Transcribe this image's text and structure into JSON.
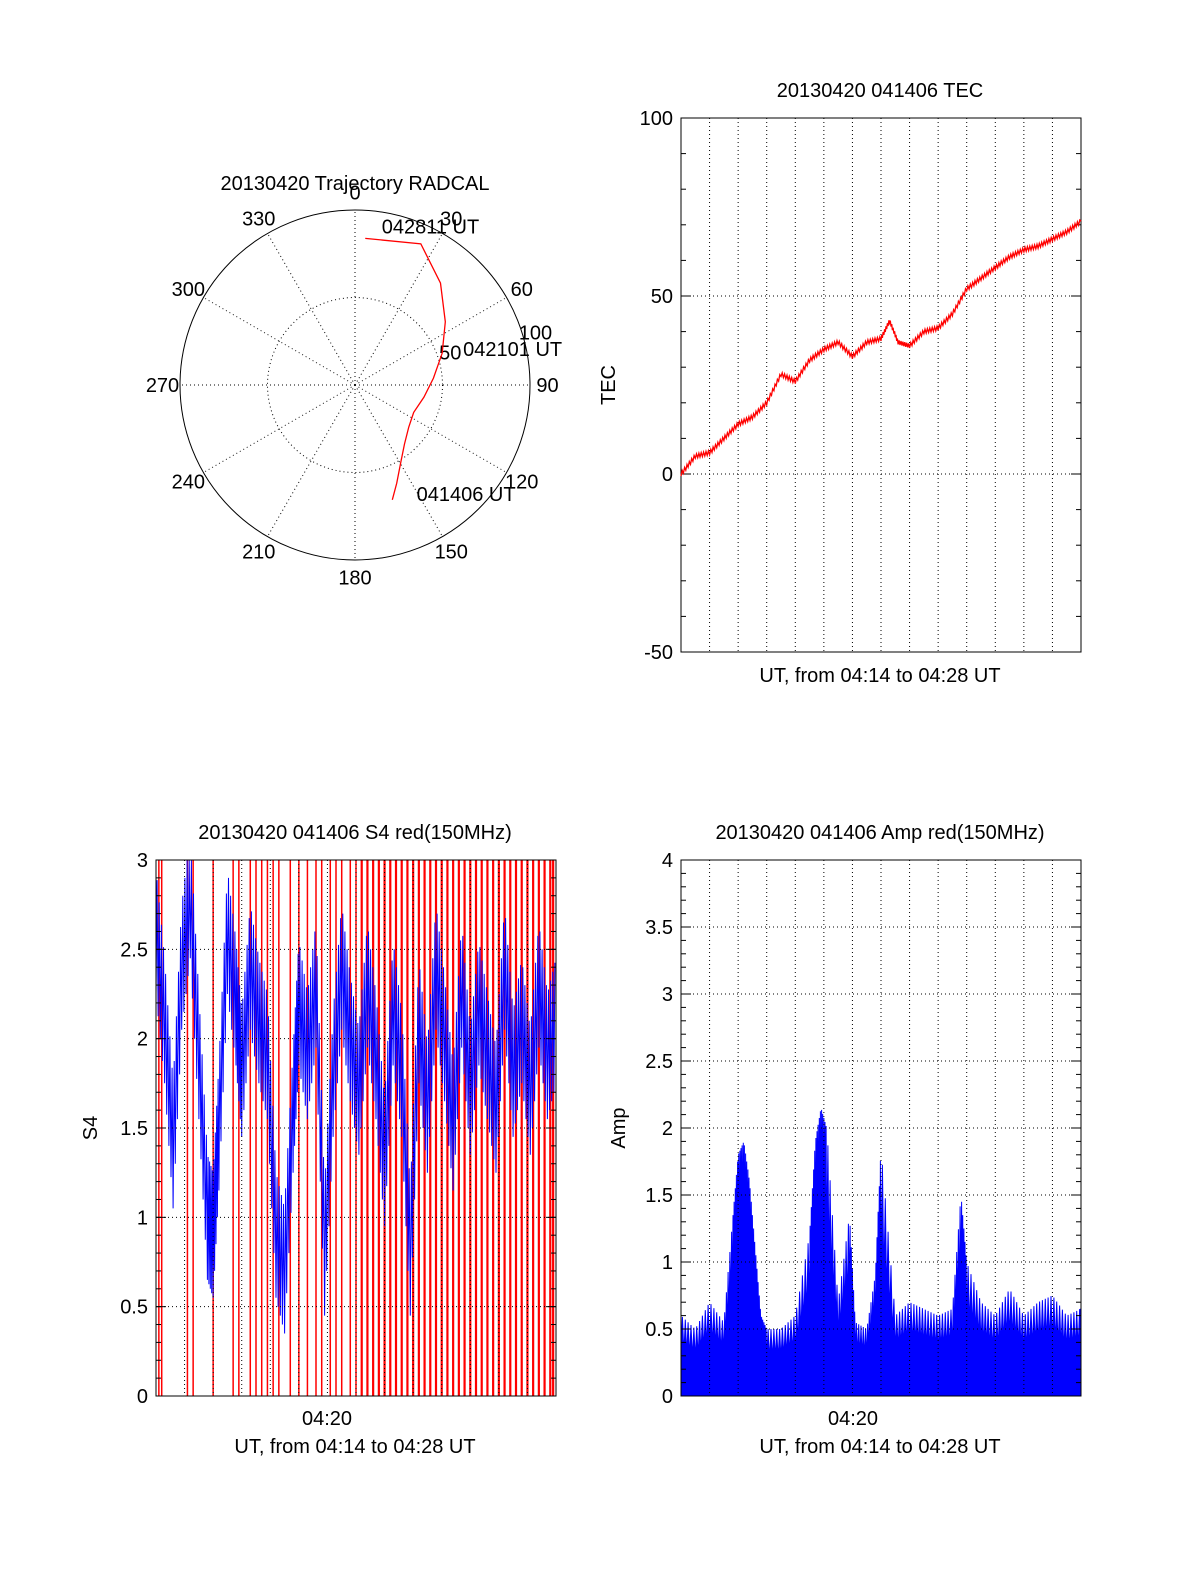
{
  "chart_data": [
    {
      "type": "polar",
      "title": "20130420 Trajectory RADCAL",
      "angle_labels": [
        "0",
        "30",
        "60",
        "90",
        "120",
        "150",
        "180",
        "210",
        "240",
        "270",
        "300",
        "330"
      ],
      "radius_labels": [
        "50",
        "100"
      ],
      "rlim": [
        0,
        100
      ],
      "grid": true,
      "series": [
        {
          "color": "#ff0000",
          "points": [
            {
              "az": 162,
              "r": 69
            },
            {
              "az": 157,
              "r": 61
            },
            {
              "az": 150,
              "r": 52
            },
            {
              "az": 140,
              "r": 44
            },
            {
              "az": 128,
              "r": 39
            },
            {
              "az": 115,
              "r": 37
            },
            {
              "az": 100,
              "r": 40
            },
            {
              "az": 85,
              "r": 45
            },
            {
              "az": 70,
              "r": 53
            },
            {
              "az": 55,
              "r": 63
            },
            {
              "az": 40,
              "r": 76
            },
            {
              "az": 25,
              "r": 89
            },
            {
              "az": 4,
              "r": 84
            }
          ]
        }
      ],
      "annotations": [
        {
          "text": "041406 UT",
          "az": 152,
          "r": 75
        },
        {
          "text": "042101 UT",
          "az": 75,
          "r": 64
        },
        {
          "text": "042811 UT",
          "az": 10,
          "r": 88
        }
      ]
    },
    {
      "type": "line",
      "title": "20130420 041406 TEC",
      "xlabel": "UT, from 04:14 to 04:28 UT",
      "ylabel": "TEC",
      "xlim": [
        0,
        14
      ],
      "ylim": [
        -50,
        100
      ],
      "yticks": [
        "-50",
        "0",
        "50",
        "100"
      ],
      "grid": true,
      "series": [
        {
          "color": "#ff0000",
          "x": [
            0,
            0.5,
            1.0,
            1.5,
            2.0,
            2.5,
            3.0,
            3.5,
            4.0,
            4.5,
            5.0,
            5.5,
            6.0,
            6.5,
            7.0,
            7.3,
            7.6,
            8.0,
            8.5,
            9.0,
            9.5,
            10.0,
            10.5,
            11.0,
            11.5,
            12.0,
            12.5,
            13.0,
            13.5,
            14.0
          ],
          "y": [
            0,
            5,
            6,
            10,
            14,
            16,
            20,
            28,
            26,
            32,
            35,
            37,
            33,
            37,
            38,
            43,
            37,
            36,
            40,
            41,
            45,
            52,
            55,
            58,
            61,
            63,
            64,
            66,
            68,
            71
          ]
        }
      ]
    },
    {
      "type": "line",
      "title": "20130420 041406 S4 red(150MHz)",
      "xlabel": "UT, from 04:14 to 04:28 UT",
      "ylabel": "S4",
      "xtick_labels": [
        "04:20"
      ],
      "xlim": [
        0,
        14
      ],
      "ylim": [
        0,
        3
      ],
      "yticks": [
        "0",
        "0.5",
        "1",
        "1.5",
        "2",
        "2.5",
        "3"
      ],
      "grid": true,
      "series": [
        {
          "color": "#ff0000",
          "description_values": "dense vertical spikes from 0 to 3",
          "x": [
            0.1,
            0.2,
            1.1,
            1.3,
            2.0,
            2.7,
            2.9,
            3.3,
            3.5,
            3.7,
            3.9,
            4.1,
            4.3,
            4.7,
            5.0,
            5.3,
            5.6,
            5.8,
            6.1,
            6.3,
            6.5,
            6.8,
            7.0,
            7.2,
            7.4,
            7.6,
            7.8,
            8.0,
            8.2,
            8.4,
            8.6,
            8.8,
            9.0,
            9.2,
            9.4,
            9.6,
            9.8,
            10.0,
            10.2,
            10.4,
            10.6,
            10.8,
            11.0,
            11.2,
            11.4,
            11.6,
            11.8,
            12.0,
            12.2,
            12.4,
            12.6,
            12.8,
            13.0,
            13.2,
            13.4,
            13.6,
            13.8,
            13.9
          ],
          "y": [
            3,
            3,
            3,
            3,
            3,
            3,
            3,
            3,
            3,
            3,
            3,
            3,
            3,
            3,
            3,
            3,
            3,
            3,
            3,
            3,
            3,
            3,
            3,
            3,
            3,
            3,
            3,
            3,
            3,
            3,
            3,
            3,
            3,
            3,
            3,
            3,
            3,
            3,
            3,
            3,
            3,
            3,
            3,
            3,
            3,
            3,
            3,
            3,
            3,
            3,
            3,
            3,
            3,
            3,
            3,
            3,
            3,
            3
          ]
        },
        {
          "color": "#0000ff",
          "x": [
            0,
            0.3,
            0.6,
            0.9,
            1.2,
            1.5,
            1.8,
            2.0,
            2.2,
            2.5,
            2.8,
            3.0,
            3.3,
            3.6,
            3.9,
            4.2,
            4.5,
            4.8,
            5.0,
            5.3,
            5.6,
            5.9,
            6.2,
            6.5,
            6.8,
            7.1,
            7.4,
            7.7,
            8.0,
            8.3,
            8.6,
            8.9,
            9.2,
            9.5,
            9.8,
            10.1,
            10.4,
            10.7,
            11.0,
            11.3,
            11.6,
            11.9,
            12.2,
            12.5,
            12.8,
            13.1,
            13.4,
            13.7,
            14.0
          ],
          "y": [
            2.6,
            2.1,
            1.4,
            2.4,
            2.8,
            1.9,
            1.0,
            0.9,
            1.5,
            2.6,
            2.2,
            1.8,
            2.4,
            2.1,
            1.9,
            0.9,
            0.7,
            1.6,
            2.2,
            1.9,
            2.3,
            0.8,
            1.8,
            2.4,
            2.0,
            1.7,
            2.3,
            1.9,
            1.3,
            2.2,
            1.8,
            0.8,
            2.1,
            1.6,
            2.4,
            2.0,
            1.5,
            2.3,
            1.7,
            2.2,
            1.9,
            1.6,
            2.4,
            1.8,
            2.1,
            1.7,
            2.3,
            1.9,
            2.1
          ]
        }
      ]
    },
    {
      "type": "bar",
      "title": "20130420 041406 Amp red(150MHz)",
      "xlabel": "UT, from 04:14 to 04:28 UT",
      "ylabel": "Amp",
      "xtick_labels": [
        "04:20"
      ],
      "xlim": [
        0,
        14
      ],
      "ylim": [
        0,
        4
      ],
      "yticks": [
        "0",
        "0.5",
        "1",
        "1.5",
        "2",
        "2.5",
        "3",
        "3.5",
        "4"
      ],
      "grid": true,
      "series": [
        {
          "color": "#0000ff",
          "x": [
            0.0,
            0.5,
            1.0,
            1.5,
            1.8,
            2.0,
            2.2,
            2.4,
            2.6,
            2.8,
            3.0,
            3.5,
            4.0,
            4.5,
            4.7,
            4.9,
            5.1,
            5.5,
            5.9,
            6.1,
            6.5,
            6.8,
            7.0,
            7.5,
            8.0,
            8.5,
            9.0,
            9.5,
            9.8,
            10.0,
            10.5,
            11.0,
            11.5,
            12.0,
            12.5,
            13.0,
            13.5,
            14.0
          ],
          "y": [
            0.6,
            0.5,
            0.7,
            0.55,
            1.3,
            1.8,
            1.9,
            1.6,
            1.1,
            0.6,
            0.5,
            0.5,
            0.6,
            1.2,
            1.9,
            2.15,
            2.0,
            0.7,
            1.35,
            0.55,
            0.5,
            0.9,
            1.85,
            0.6,
            0.7,
            0.65,
            0.6,
            0.65,
            1.5,
            1.0,
            0.7,
            0.6,
            0.8,
            0.6,
            0.7,
            0.75,
            0.6,
            0.65
          ]
        }
      ]
    }
  ]
}
